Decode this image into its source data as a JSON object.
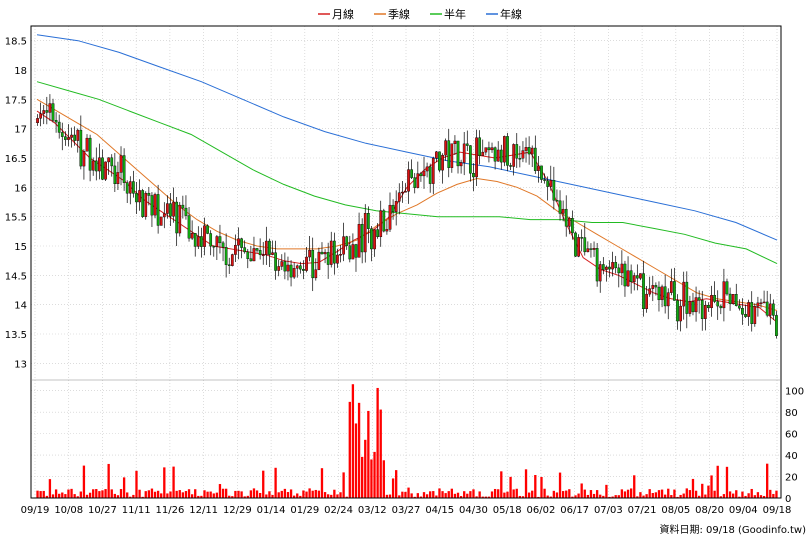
{
  "chart_data": {
    "type": "candlestick",
    "legend": [
      {
        "label": "月線",
        "color": "#d62020"
      },
      {
        "label": "季線",
        "color": "#e07828"
      },
      {
        "label": "半年",
        "color": "#22bb22"
      },
      {
        "label": "年線",
        "color": "#2a6fd6"
      }
    ],
    "colors": {
      "up": "#dd1111",
      "down": "#11aa11",
      "volume": "#ff0000",
      "grid": "#c8c8c8"
    },
    "price_axis": {
      "min": 12.75,
      "max": 18.75,
      "ticks": [
        "13",
        "13.5",
        "14",
        "14.5",
        "15",
        "15.5",
        "16",
        "16.5",
        "17",
        "17.5",
        "18",
        "18.5"
      ]
    },
    "volume_axis": {
      "min": 0,
      "max": 110,
      "ticks": [
        "0",
        "20",
        "40",
        "60",
        "80",
        "100"
      ]
    },
    "x_tick_labels": [
      "09/19",
      "10/08",
      "10/27",
      "11/11",
      "11/26",
      "12/11",
      "12/29",
      "01/14",
      "01/29",
      "02/24",
      "03/12",
      "03/27",
      "04/15",
      "04/30",
      "05/18",
      "06/02",
      "06/17",
      "07/03",
      "07/21",
      "08/05",
      "08/20",
      "09/04",
      "09/18"
    ],
    "moving_averages": {
      "月線": [
        17.3,
        17.1,
        16.8,
        16.5,
        16.3,
        16.1,
        15.8,
        15.6,
        15.4,
        15.2,
        15.0,
        14.95,
        14.9,
        14.85,
        14.75,
        14.7,
        14.72,
        14.9,
        15.1,
        15.25,
        15.5,
        16.0,
        16.3,
        16.5,
        16.6,
        16.55,
        16.5,
        16.55,
        16.6,
        16.1,
        15.4,
        14.8,
        14.6,
        14.5,
        14.35,
        14.2,
        14.1,
        14.05,
        14.1,
        14.05,
        14.0,
        13.95,
        13.7
      ],
      "季線": [
        17.5,
        17.3,
        17.1,
        16.9,
        16.6,
        16.3,
        16.0,
        15.7,
        15.45,
        15.25,
        15.1,
        15.0,
        14.95,
        14.95,
        14.95,
        15.0,
        15.1,
        15.35,
        15.55,
        15.7,
        15.9,
        16.05,
        16.15,
        16.1,
        16.0,
        15.85,
        15.6,
        15.4,
        15.2,
        15.0,
        14.8,
        14.6,
        14.4,
        14.2,
        14.1,
        14.05,
        14.0,
        13.9
      ],
      "半年": [
        17.8,
        17.65,
        17.5,
        17.3,
        17.1,
        16.9,
        16.6,
        16.3,
        16.05,
        15.85,
        15.7,
        15.6,
        15.55,
        15.5,
        15.5,
        15.5,
        15.45,
        15.45,
        15.4,
        15.4,
        15.3,
        15.2,
        15.05,
        14.95,
        14.7
      ],
      "年線": [
        18.6,
        18.5,
        18.3,
        18.05,
        17.8,
        17.5,
        17.2,
        16.95,
        16.75,
        16.6,
        16.45,
        16.35,
        16.2,
        16.05,
        15.9,
        15.75,
        15.6,
        15.4,
        15.1
      ]
    },
    "footer_label": "資料日期: 09/18 (Goodinfo.tw)"
  }
}
